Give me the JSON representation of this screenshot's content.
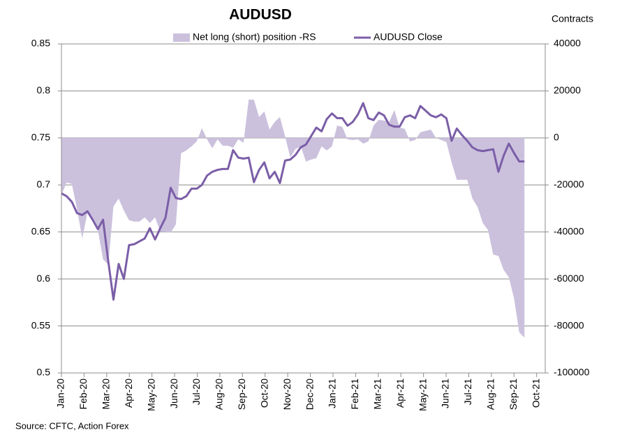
{
  "chart_data": {
    "type": "line",
    "title": "AUDUSD",
    "y2label": "Contracts",
    "source": "Source: CFTC, Action Forex",
    "legend": "top",
    "grid": true,
    "x": [
      0,
      1,
      2,
      3,
      4,
      5,
      6,
      7,
      8,
      9,
      10,
      11,
      12,
      13,
      14,
      15,
      16,
      17,
      18,
      19,
      20,
      21,
      22,
      23,
      24,
      25,
      26,
      27,
      28,
      29,
      30,
      31,
      32,
      33,
      34,
      35,
      36,
      37,
      38,
      39,
      40,
      41,
      42,
      43,
      44,
      45,
      46,
      47,
      48,
      49,
      50,
      51,
      52,
      53,
      54,
      55,
      56,
      57,
      58,
      59,
      60,
      61,
      62,
      63,
      64,
      65,
      66,
      67,
      68,
      69,
      70,
      71,
      72,
      73,
      74,
      75,
      76,
      77,
      78,
      79,
      80,
      81,
      82,
      83,
      84,
      85,
      86,
      87,
      88,
      89
    ],
    "xlim": [
      0,
      93
    ],
    "xticks": [
      {
        "value": 0,
        "label": "Jan-20"
      },
      {
        "value": 4.35,
        "label": "Feb-20"
      },
      {
        "value": 8.7,
        "label": "Mar-20"
      },
      {
        "value": 13.05,
        "label": "Apr-20"
      },
      {
        "value": 17.4,
        "label": "May-20"
      },
      {
        "value": 21.75,
        "label": "Jun-20"
      },
      {
        "value": 26.1,
        "label": "Jul-20"
      },
      {
        "value": 30.45,
        "label": "Aug-20"
      },
      {
        "value": 34.8,
        "label": "Sep-20"
      },
      {
        "value": 39.15,
        "label": "Oct-20"
      },
      {
        "value": 43.5,
        "label": "Nov-20"
      },
      {
        "value": 47.85,
        "label": "Dec-20"
      },
      {
        "value": 52.2,
        "label": "Jan-21"
      },
      {
        "value": 56.55,
        "label": "Feb-21"
      },
      {
        "value": 60.9,
        "label": "Mar-21"
      },
      {
        "value": 65.25,
        "label": "Apr-21"
      },
      {
        "value": 69.6,
        "label": "May-21"
      },
      {
        "value": 73.95,
        "label": "Jun-21"
      },
      {
        "value": 78.3,
        "label": "Jul-21"
      },
      {
        "value": 82.65,
        "label": "Aug-21"
      },
      {
        "value": 87,
        "label": "Sep-21"
      },
      {
        "value": 91.35,
        "label": "Oct-21"
      }
    ],
    "ylim": [
      0.5,
      0.85
    ],
    "yticks": [
      0.5,
      0.55,
      0.6,
      0.65,
      0.7,
      0.75,
      0.8,
      0.85
    ],
    "y2lim": [
      -100000,
      40000
    ],
    "y2ticks": [
      -100000,
      -80000,
      -60000,
      -40000,
      -20000,
      0,
      20000,
      40000
    ],
    "series": [
      {
        "name": "Net long (short) position -RS",
        "type": "area",
        "axis": "y2",
        "color": "#cbc1dd",
        "values": [
          -24300,
          -19000,
          -19600,
          -30300,
          -42700,
          -31700,
          -35600,
          -39200,
          -51600,
          -54000,
          -29100,
          -25800,
          -30900,
          -35000,
          -35600,
          -35600,
          -33800,
          -36200,
          -33800,
          -39900,
          -40000,
          -40300,
          -36800,
          -6500,
          -5300,
          -3600,
          -1500,
          4200,
          -600,
          -4400,
          -600,
          -3300,
          -3300,
          -4200,
          -600,
          -2100,
          16300,
          16300,
          8900,
          11300,
          3600,
          6800,
          8900,
          600,
          -8300,
          -4700,
          -3600,
          -10100,
          -9200,
          -8600,
          -3600,
          -5300,
          -3600,
          5300,
          4700,
          -600,
          -900,
          -600,
          -2400,
          -1500,
          5300,
          7700,
          7400,
          6800,
          11900,
          4400,
          3900,
          -1500,
          -900,
          2400,
          3000,
          3600,
          0,
          -900,
          -1800,
          -10400,
          -17800,
          -17800,
          -17800,
          -25800,
          -29400,
          -36200,
          -39200,
          -49600,
          -50200,
          -56100,
          -59300,
          -68200,
          -82700,
          -85000
        ]
      },
      {
        "name": "AUDUSD Close",
        "type": "line",
        "color": "#7b5ea7",
        "values": [
          0.691,
          0.688,
          0.682,
          0.67,
          0.668,
          0.672,
          0.663,
          0.653,
          0.663,
          0.619,
          0.578,
          0.616,
          0.6,
          0.636,
          0.637,
          0.64,
          0.643,
          0.654,
          0.642,
          0.654,
          0.665,
          0.697,
          0.686,
          0.685,
          0.688,
          0.696,
          0.696,
          0.7,
          0.71,
          0.714,
          0.716,
          0.717,
          0.717,
          0.737,
          0.729,
          0.728,
          0.729,
          0.703,
          0.716,
          0.724,
          0.707,
          0.714,
          0.702,
          0.726,
          0.727,
          0.732,
          0.74,
          0.743,
          0.752,
          0.761,
          0.757,
          0.77,
          0.776,
          0.771,
          0.771,
          0.763,
          0.767,
          0.775,
          0.787,
          0.771,
          0.769,
          0.777,
          0.774,
          0.764,
          0.762,
          0.762,
          0.772,
          0.774,
          0.771,
          0.784,
          0.779,
          0.774,
          0.772,
          0.775,
          0.771,
          0.747,
          0.76,
          0.753,
          0.747,
          0.74,
          0.737,
          0.736,
          0.737,
          0.738,
          0.714,
          0.731,
          0.744,
          0.734,
          0.725,
          0.725
        ]
      }
    ]
  }
}
